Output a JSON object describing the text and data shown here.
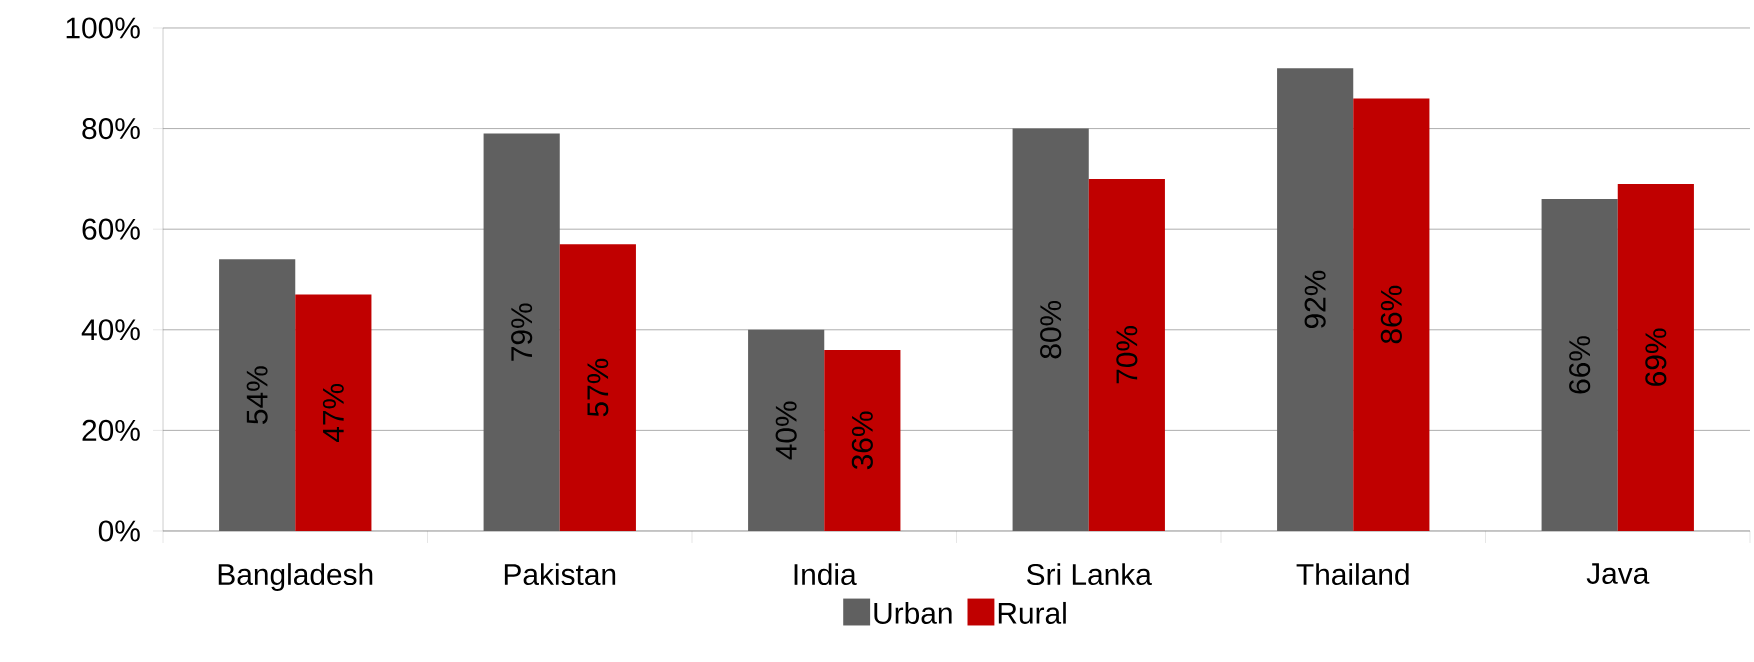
{
  "chart_data": {
    "type": "bar",
    "categories": [
      "Bangladesh",
      "Pakistan",
      "India",
      "Sri Lanka",
      "Thailand",
      "Java"
    ],
    "series": [
      {
        "name": "Urban",
        "color": "#606060",
        "values": [
          54,
          79,
          40,
          80,
          92,
          66
        ],
        "value_labels": [
          "54%",
          "79%",
          "40%",
          "80%",
          "92%",
          "66%"
        ]
      },
      {
        "name": "Rural",
        "color": "#c00000",
        "values": [
          47,
          57,
          36,
          70,
          86,
          69
        ],
        "value_labels": [
          "47%",
          "57%",
          "36%",
          "70%",
          "86%",
          "69%"
        ]
      }
    ],
    "ylim": [
      0,
      100
    ],
    "yticks": [
      {
        "value": 0,
        "label": "0%"
      },
      {
        "value": 20,
        "label": "20%"
      },
      {
        "value": 40,
        "label": "40%"
      },
      {
        "value": 60,
        "label": "60%"
      },
      {
        "value": 80,
        "label": "80%"
      },
      {
        "value": 100,
        "label": "100%"
      }
    ],
    "grid": "y",
    "legend": "bottom"
  }
}
